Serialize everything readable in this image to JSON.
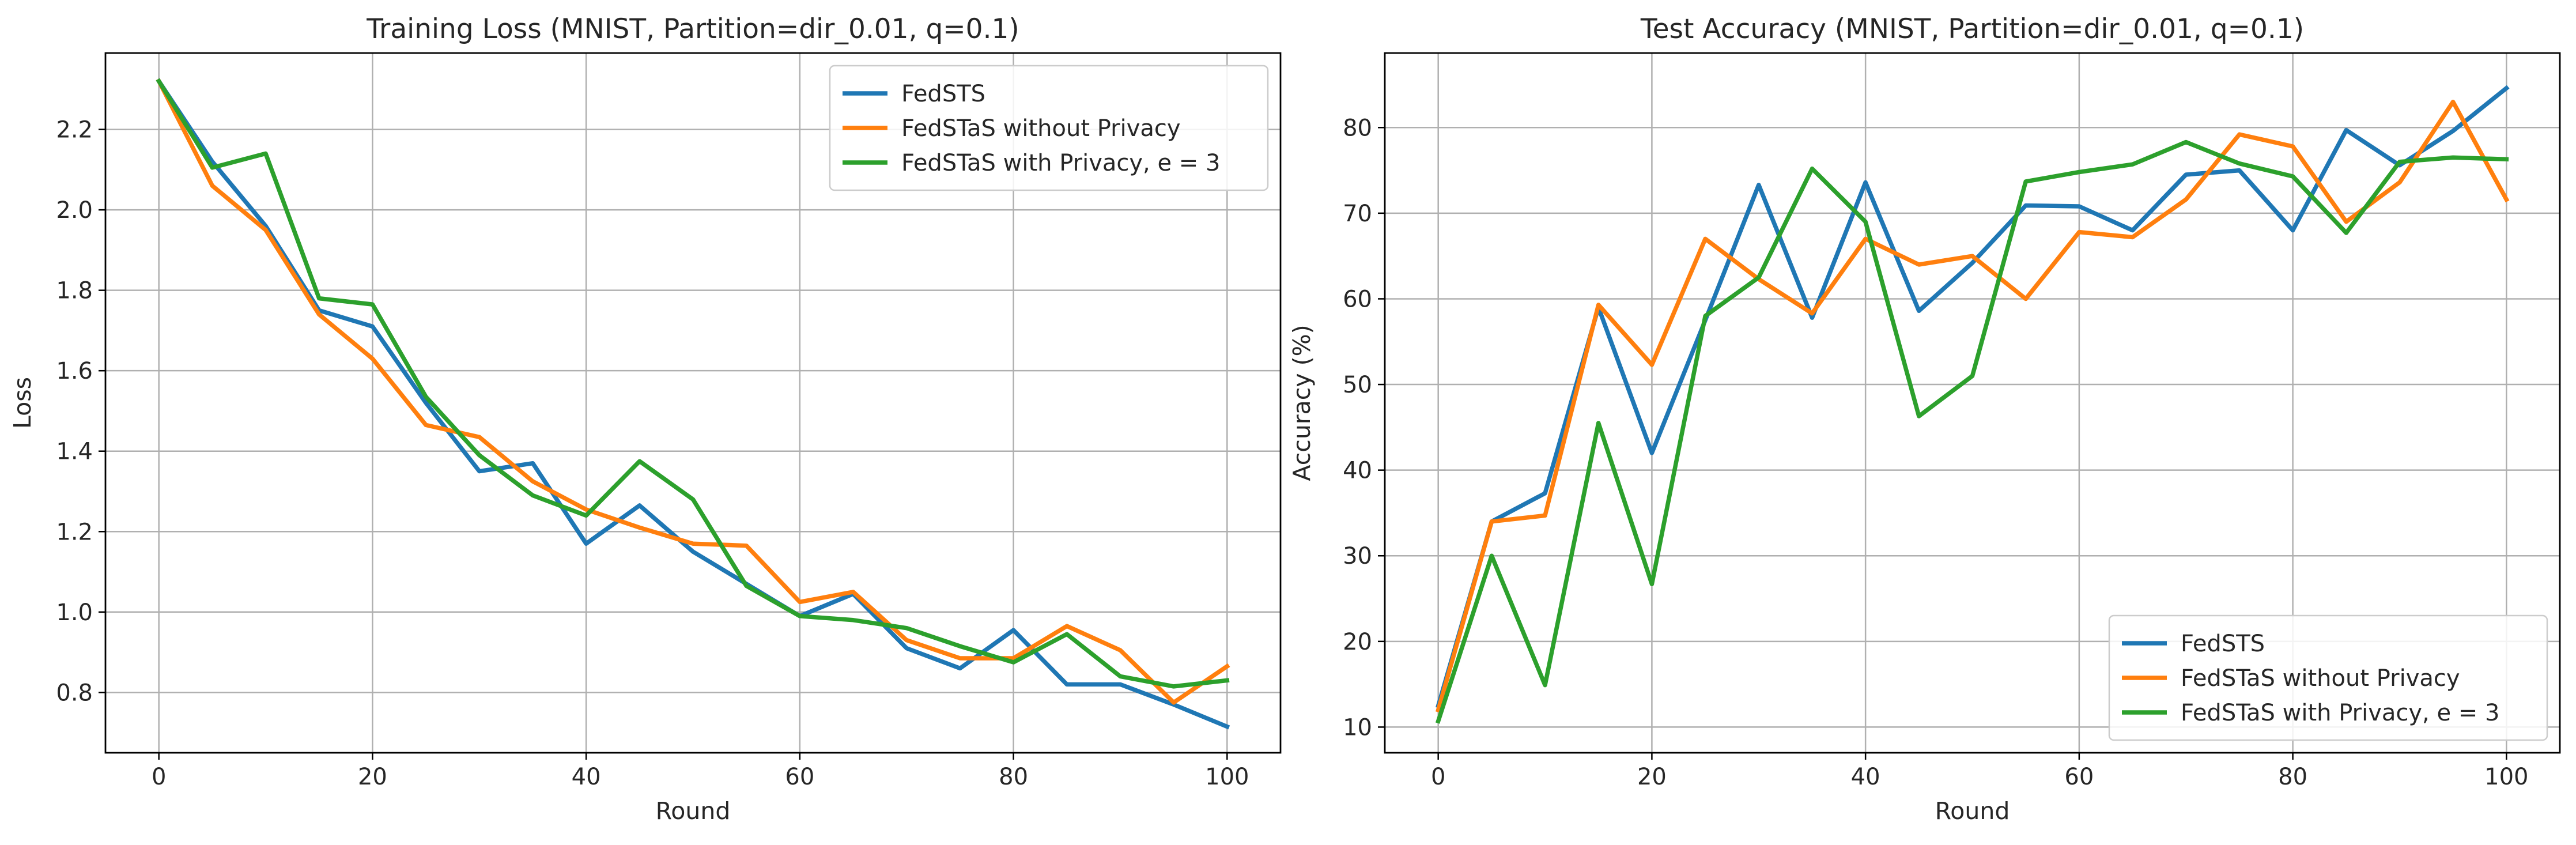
{
  "chart_data": [
    {
      "type": "line",
      "title": "Training Loss (MNIST, Partition=dir_0.01, q=0.1)",
      "xlabel": "Round",
      "ylabel": "Loss",
      "xlim": [
        -5,
        105
      ],
      "ylim": [
        0.65,
        2.39
      ],
      "xticks": [
        0,
        20,
        40,
        60,
        80,
        100
      ],
      "yticks": [
        0.8,
        1.0,
        1.2,
        1.4,
        1.6,
        1.8,
        2.0,
        2.2
      ],
      "ytick_decimals": 1,
      "grid": true,
      "legend_position": "upper right",
      "x": [
        0,
        5,
        10,
        15,
        20,
        25,
        30,
        35,
        40,
        45,
        50,
        55,
        60,
        65,
        70,
        75,
        80,
        85,
        90,
        95,
        100
      ],
      "series": [
        {
          "name": "FedSTS",
          "color": "#1f77b4",
          "values": [
            2.32,
            2.12,
            1.96,
            1.75,
            1.71,
            1.52,
            1.35,
            1.37,
            1.17,
            1.265,
            1.15,
            1.07,
            0.99,
            1.045,
            0.91,
            0.86,
            0.955,
            0.82,
            0.82,
            0.77,
            0.715
          ]
        },
        {
          "name": "FedSTaS without Privacy",
          "color": "#ff7f0e",
          "values": [
            2.32,
            2.06,
            1.95,
            1.74,
            1.63,
            1.465,
            1.435,
            1.325,
            1.255,
            1.21,
            1.17,
            1.165,
            1.025,
            1.05,
            0.93,
            0.885,
            0.885,
            0.965,
            0.905,
            0.775,
            0.865
          ]
        },
        {
          "name": "FedSTaS with Privacy, e = 3",
          "color": "#2ca02c",
          "values": [
            2.32,
            2.105,
            2.14,
            1.78,
            1.765,
            1.535,
            1.39,
            1.29,
            1.24,
            1.375,
            1.28,
            1.065,
            0.99,
            0.98,
            0.96,
            0.915,
            0.875,
            0.945,
            0.84,
            0.815,
            0.83
          ]
        }
      ]
    },
    {
      "type": "line",
      "title": "Test Accuracy (MNIST, Partition=dir_0.01, q=0.1)",
      "xlabel": "Round",
      "ylabel": "Accuracy (%)",
      "xlim": [
        -5,
        105
      ],
      "ylim": [
        7.0,
        88.7
      ],
      "xticks": [
        0,
        20,
        40,
        60,
        80,
        100
      ],
      "yticks": [
        10,
        20,
        30,
        40,
        50,
        60,
        70,
        80
      ],
      "ytick_decimals": 0,
      "grid": true,
      "legend_position": "lower right",
      "x": [
        0,
        5,
        10,
        15,
        20,
        25,
        30,
        35,
        40,
        45,
        50,
        55,
        60,
        65,
        70,
        75,
        80,
        85,
        90,
        95,
        100
      ],
      "series": [
        {
          "name": "FedSTS",
          "color": "#1f77b4",
          "values": [
            12.5,
            34.0,
            37.3,
            59.0,
            42.0,
            57.5,
            73.3,
            57.8,
            73.6,
            58.6,
            64.2,
            70.9,
            70.8,
            68.0,
            74.5,
            75.0,
            68.0,
            79.7,
            75.6,
            79.6,
            84.6
          ]
        },
        {
          "name": "FedSTaS without Privacy",
          "color": "#ff7f0e",
          "values": [
            12.0,
            34.0,
            34.7,
            59.3,
            52.3,
            67.0,
            62.3,
            58.3,
            67.0,
            64.0,
            65.0,
            60.0,
            67.8,
            67.2,
            71.6,
            79.2,
            77.8,
            69.0,
            73.6,
            83.0,
            71.6
          ]
        },
        {
          "name": "FedSTaS with Privacy, e = 3",
          "color": "#2ca02c",
          "values": [
            10.7,
            30.0,
            14.9,
            45.5,
            26.7,
            58.0,
            62.5,
            75.2,
            69.0,
            46.3,
            51.0,
            73.7,
            74.8,
            75.7,
            78.3,
            75.8,
            74.3,
            67.7,
            76.0,
            76.5,
            76.3
          ]
        }
      ]
    }
  ]
}
